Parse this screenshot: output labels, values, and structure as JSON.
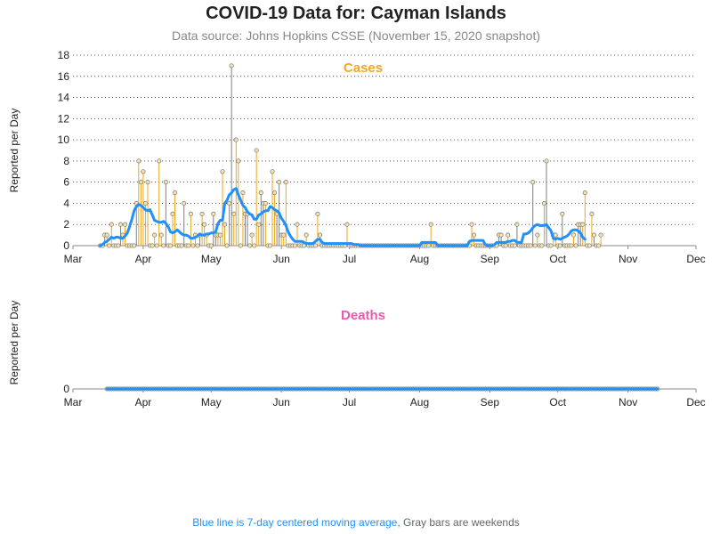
{
  "page": {
    "title": "COVID-19 Data for: Cayman Islands",
    "subtitle": "Data source: Johns Hopkins CSSE (November 15, 2020 snapshot)",
    "footnote_blue": "Blue line is 7-day centered moving average,",
    "footnote_gray": "Gray bars are weekends"
  },
  "chart_data": [
    {
      "type": "bar",
      "title": "Cases",
      "title_color": "#f5a623",
      "ylabel": "Reported per Day",
      "ylim": [
        0,
        18
      ],
      "yticks": [
        0,
        2,
        4,
        6,
        8,
        10,
        12,
        14,
        16,
        18
      ],
      "grid": true,
      "x_start": "2020-03-01",
      "x_end": "2020-12-01",
      "xticks": [
        {
          "date": "2020-03-01",
          "label": "Mar"
        },
        {
          "date": "2020-04-01",
          "label": "Apr"
        },
        {
          "date": "2020-05-01",
          "label": "May"
        },
        {
          "date": "2020-06-01",
          "label": "Jun"
        },
        {
          "date": "2020-07-01",
          "label": "Jul"
        },
        {
          "date": "2020-08-01",
          "label": "Aug"
        },
        {
          "date": "2020-09-01",
          "label": "Sep"
        },
        {
          "date": "2020-10-01",
          "label": "Oct"
        },
        {
          "date": "2020-11-01",
          "label": "Nov"
        },
        {
          "date": "2020-12-01",
          "label": "Dec"
        }
      ],
      "colors": {
        "bar": "#e8a820",
        "weekend_bar": "#808080",
        "average": "#1e90ff"
      },
      "series_first_date": "2020-03-13",
      "daily": [
        0,
        0,
        1,
        1,
        0,
        2,
        0,
        0,
        0,
        2,
        1,
        2,
        0,
        0,
        0,
        0,
        4,
        8,
        6,
        7,
        4,
        6,
        0,
        0,
        1,
        0,
        8,
        1,
        0,
        6,
        0,
        0,
        3,
        5,
        0,
        0,
        0,
        4,
        0,
        0,
        3,
        0,
        1,
        0,
        1,
        3,
        2,
        1,
        0,
        0,
        3,
        1,
        1,
        1,
        7,
        2,
        0,
        4,
        17,
        3,
        10,
        8,
        0,
        5,
        3,
        3,
        0,
        1,
        0,
        9,
        2,
        5,
        4,
        4,
        0,
        0,
        7,
        5,
        3,
        6,
        1,
        1,
        6,
        0,
        0,
        0,
        0,
        2,
        0,
        0,
        0,
        1,
        0,
        0,
        0,
        0,
        3,
        1,
        0,
        0,
        0,
        0,
        0,
        0,
        0,
        0,
        0,
        0,
        0,
        2,
        0,
        0,
        0,
        0,
        0,
        0,
        0,
        0,
        0,
        0,
        0,
        0,
        0,
        0,
        0,
        0,
        0,
        0,
        0,
        0,
        0,
        0,
        0,
        0,
        0,
        0,
        0,
        0,
        0,
        0,
        0,
        0,
        0,
        0,
        0,
        0,
        2,
        0,
        0,
        0,
        0,
        0,
        0,
        0,
        0,
        0,
        0,
        0,
        0,
        0,
        0,
        0,
        0,
        0,
        2,
        1,
        0,
        0,
        0,
        0,
        0,
        0,
        0,
        0,
        0,
        0,
        1,
        1,
        0,
        0,
        1,
        0,
        0,
        0,
        2,
        0,
        0,
        0,
        0,
        0,
        0,
        6,
        0,
        1,
        0,
        0,
        4,
        8,
        0,
        0,
        1,
        1,
        0,
        0,
        3,
        0,
        0,
        0,
        0,
        1,
        0,
        2,
        2,
        2,
        5,
        0,
        0,
        3,
        1,
        0,
        0,
        1
      ],
      "moving_average": [
        0,
        0.1,
        0.3,
        0.4,
        0.6,
        0.8,
        0.7,
        0.8,
        0.8,
        0.7,
        0.7,
        0.9,
        1.2,
        1.8,
        2.5,
        3.3,
        3.7,
        3.9,
        3.8,
        3.6,
        3.4,
        3.3,
        3.4,
        2.9,
        2.4,
        2.3,
        2.2,
        2.2,
        2.3,
        2.1,
        1.8,
        1.3,
        1.2,
        1.3,
        1.5,
        1.3,
        1.1,
        1.0,
        1.0,
        0.9,
        0.7,
        0.7,
        0.8,
        0.9,
        1.1,
        1.0,
        1.0,
        1.1,
        1.1,
        1.2,
        1.2,
        1.3,
        2.1,
        2.4,
        2.4,
        4.0,
        4.3,
        4.8,
        5.0,
        5.3,
        5.4,
        4.8,
        4.3,
        3.8,
        3.6,
        3.2,
        3.0,
        2.9,
        2.5,
        2.5,
        2.9,
        3.0,
        3.2,
        3.3,
        3.3,
        3.7,
        3.6,
        3.4,
        3.3,
        3.1,
        2.6,
        2.3,
        1.9,
        1.3,
        0.9,
        0.6,
        0.4,
        0.4,
        0.4,
        0.4,
        0.3,
        0.2,
        0.2,
        0.2,
        0.2,
        0.4,
        0.6,
        0.6,
        0.3,
        0.2,
        0.2,
        0.2,
        0.2,
        0.2,
        0.2,
        0.2,
        0.2,
        0.2,
        0.2,
        0.2,
        0.2,
        0.2,
        0.1,
        0.1,
        0.1,
        0,
        0,
        0,
        0,
        0,
        0,
        0,
        0,
        0,
        0,
        0,
        0,
        0,
        0,
        0,
        0,
        0,
        0,
        0,
        0,
        0,
        0,
        0,
        0,
        0,
        0,
        0,
        0.3,
        0.3,
        0.3,
        0.3,
        0.3,
        0.3,
        0.3,
        0,
        0,
        0,
        0,
        0,
        0,
        0,
        0,
        0,
        0,
        0,
        0,
        0,
        0,
        0.4,
        0.5,
        0.5,
        0.5,
        0.5,
        0.5,
        0.5,
        0.1,
        0,
        0,
        0,
        0.1,
        0.3,
        0.3,
        0.3,
        0.3,
        0.3,
        0.4,
        0.4,
        0.5,
        0.5,
        0.3,
        0.3,
        0.3,
        1.1,
        1.1,
        1.2,
        1.4,
        1.7,
        1.9,
        2.0,
        1.9,
        1.9,
        1.9,
        2.0,
        1.7,
        1.4,
        0.7,
        0.6,
        0.7,
        0.6,
        0.7,
        0.8,
        0.9,
        1.1,
        1.4,
        1.5,
        1.5,
        1.4,
        1.2,
        0.8,
        0.6
      ]
    },
    {
      "type": "bar",
      "title": "Deaths",
      "title_color": "#e85aad",
      "ylabel": "Reported per Day",
      "ylim": [
        0,
        1
      ],
      "yticks": [
        0
      ],
      "grid": false,
      "x_start": "2020-03-01",
      "x_end": "2020-12-01",
      "xticks": [
        {
          "date": "2020-03-01",
          "label": "Mar"
        },
        {
          "date": "2020-04-01",
          "label": "Apr"
        },
        {
          "date": "2020-05-01",
          "label": "May"
        },
        {
          "date": "2020-06-01",
          "label": "Jun"
        },
        {
          "date": "2020-07-01",
          "label": "Jul"
        },
        {
          "date": "2020-08-01",
          "label": "Aug"
        },
        {
          "date": "2020-09-01",
          "label": "Sep"
        },
        {
          "date": "2020-10-01",
          "label": "Oct"
        },
        {
          "date": "2020-11-01",
          "label": "Nov"
        },
        {
          "date": "2020-12-01",
          "label": "Dec"
        }
      ],
      "colors": {
        "bar": "#e8a820",
        "weekend_bar": "#808080",
        "average": "#1e90ff"
      },
      "series_first_date": "2020-03-16",
      "series_last_date": "2020-11-14",
      "daily_value": 0,
      "moving_average_value": 0
    }
  ]
}
